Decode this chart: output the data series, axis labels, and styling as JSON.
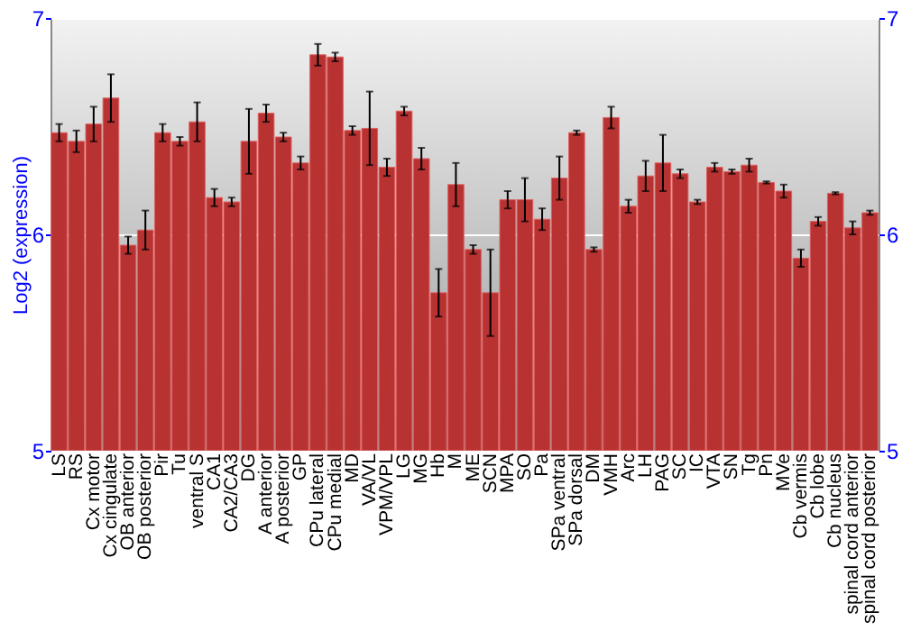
{
  "chart_data": {
    "type": "bar",
    "ylabel": "Log2 (expression)",
    "categories": [
      "LS",
      "RS",
      "Cx motor",
      "Cx cingulate",
      "OB anterior",
      "OB posterior",
      "Pir",
      "Tu",
      "ventral S",
      "CA1",
      "CA2/CA3",
      "DG",
      "A anterior",
      "A posterior",
      "GP",
      "CPu lateral",
      "CPu medial",
      "MD",
      "VA/VL",
      "VPM/VPL",
      "LG",
      "MG",
      "Hb",
      "M",
      "ME",
      "SCN",
      "MPA",
      "SO",
      "Pa",
      "SPa ventral",
      "SPa dorsal",
      "DM",
      "VMH",
      "Arc",
      "LH",
      "PAG",
      "SC",
      "IC",
      "VTA",
      "SN",
      "Tg",
      "Pn",
      "MVe",
      "Cb vermis",
      "Cb lobe",
      "Cb nucleus",
      "spinal cord anterior",
      "spinal cord posterior"
    ],
    "series": [
      {
        "color": "#b83232",
        "values": [
          6.47,
          6.43,
          6.51,
          6.63,
          5.95,
          6.02,
          6.47,
          6.43,
          6.52,
          6.17,
          6.15,
          6.43,
          6.56,
          6.45,
          6.33,
          6.83,
          6.82,
          6.48,
          6.49,
          6.31,
          6.57,
          6.35,
          5.73,
          6.23,
          5.93,
          5.73,
          6.16,
          6.16,
          6.07,
          6.26,
          6.47,
          5.93,
          6.54,
          6.13,
          6.27,
          6.33,
          6.28,
          6.15,
          6.31,
          6.29,
          6.32,
          6.24,
          6.2,
          5.89,
          6.06,
          6.19,
          6.03,
          6.1
        ],
        "errors": [
          0.04,
          0.05,
          0.08,
          0.11,
          0.04,
          0.09,
          0.04,
          0.02,
          0.09,
          0.04,
          0.02,
          0.15,
          0.04,
          0.02,
          0.03,
          0.05,
          0.02,
          0.02,
          0.17,
          0.04,
          0.02,
          0.05,
          0.11,
          0.1,
          0.02,
          0.2,
          0.04,
          0.1,
          0.05,
          0.1,
          0.01,
          0.01,
          0.05,
          0.03,
          0.07,
          0.13,
          0.02,
          0.01,
          0.02,
          0.01,
          0.03,
          0.005,
          0.03,
          0.04,
          0.02,
          0.005,
          0.03,
          0.01
        ]
      }
    ],
    "ylim": [
      5,
      7
    ],
    "yticks": [
      5,
      6,
      7
    ],
    "y2lim": [
      5,
      7
    ],
    "y2ticks": [
      5,
      6,
      7
    ],
    "grid": "y"
  }
}
